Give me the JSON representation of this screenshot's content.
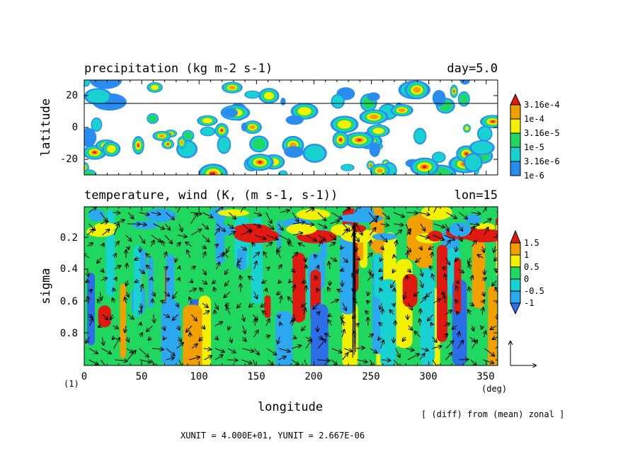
{
  "panel_top": {
    "title": "precipitation (kg m-2 s-1)",
    "right_label": "day=5.0",
    "ylabel": "latitude",
    "yticks": [
      "20",
      "0",
      "-20"
    ],
    "colorbar": [
      "3.16e-4",
      "1e-4",
      "3.16e-5",
      "1e-5",
      "3.16e-6",
      "1e-6"
    ]
  },
  "panel_bottom": {
    "title": "temperature, wind (K, (m s-1, s-1))",
    "right_label": "lon=15",
    "ylabel": "sigma",
    "yticks": [
      "0.2",
      "0.4",
      "0.6",
      "0.8"
    ],
    "colorbar": [
      "1.5",
      "1",
      "0.5",
      "0",
      "-0.5",
      "-1"
    ]
  },
  "xaxis": {
    "ticks": [
      "0",
      "50",
      "100",
      "150",
      "200",
      "250",
      "300",
      "350"
    ],
    "label": "longitude",
    "unit": "(deg)",
    "page_number": "(1)"
  },
  "note": "[ (diff) from (mean) zonal ]",
  "unit_line": "XUNIT = 4.000E+01, YUNIT = 2.667E-06",
  "chart_data": [
    {
      "type": "heatmap",
      "title": "precipitation (kg m-2 s-1)",
      "ylabel": "latitude",
      "xlim": [
        0,
        360
      ],
      "ylim": [
        -30,
        30
      ],
      "reference_line_latitude": 15,
      "levels": [
        "1e-6",
        "3.16e-6",
        "1e-5",
        "3.16e-5",
        "1e-4",
        "3.16e-4"
      ],
      "level_colors": [
        "#2b8cf0",
        "#18d2d2",
        "#20d860",
        "#f2f200",
        "#f2a000",
        "#e01a10"
      ]
    },
    {
      "type": "heatmap",
      "title": "temperature, wind (K, (m s-1, s-1))",
      "ylabel": "sigma",
      "xlabel": "longitude",
      "xlim": [
        0,
        360
      ],
      "ylim": [
        1.0,
        0.05
      ],
      "levels": [
        -1,
        -0.5,
        0,
        0.5,
        1,
        1.5
      ],
      "level_colors": [
        "#2b6ee8",
        "#2ca8f0",
        "#18d2d2",
        "#20d860",
        "#f2f200",
        "#f2a000",
        "#e01a10"
      ],
      "vectors": "wind arrows overlaid",
      "vector_scale": {
        "xunit": 40.0,
        "yunit": 2.667e-06
      }
    }
  ]
}
